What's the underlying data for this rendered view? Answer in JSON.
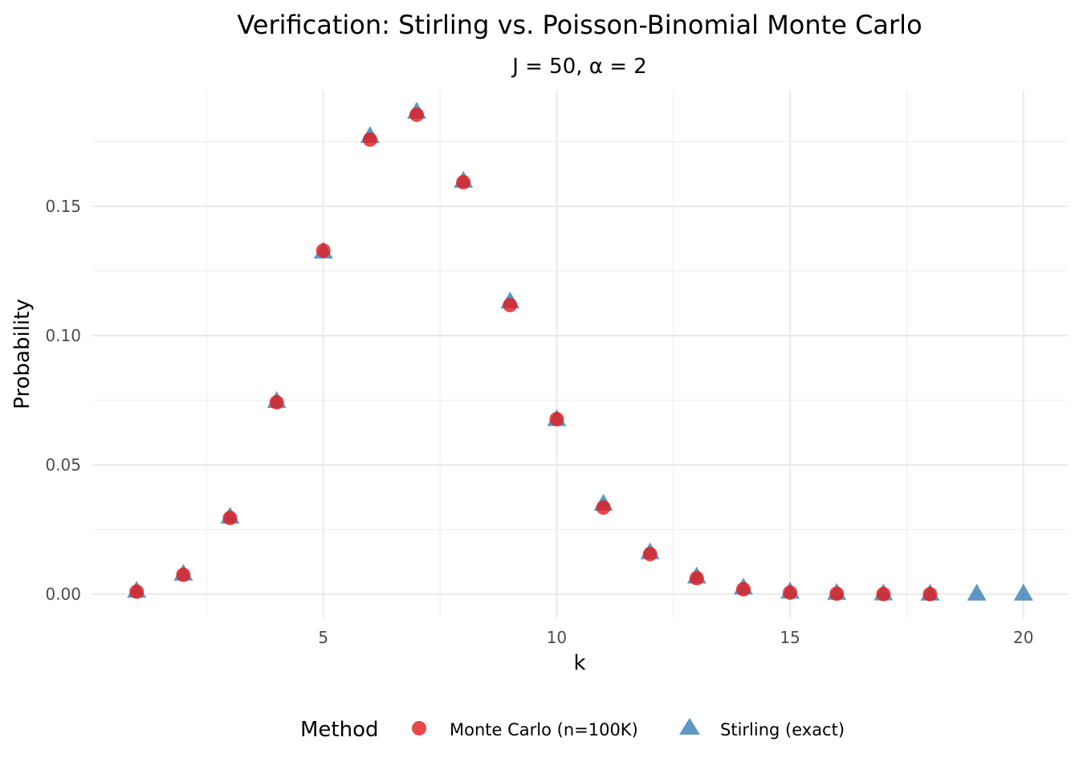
{
  "chart_data": {
    "type": "scatter",
    "title": "Verification: Stirling vs. Poisson-Binomial Monte Carlo",
    "subtitle": "J = 50, α = 2",
    "xlabel": "k",
    "ylabel": "Probability",
    "xlim": [
      0.05,
      20.95
    ],
    "ylim": [
      -0.0093,
      0.195
    ],
    "xticks": [
      5,
      10,
      15,
      20
    ],
    "xtick_labels": [
      "5",
      "10",
      "15",
      "20"
    ],
    "yticks": [
      0,
      0.05,
      0.1,
      0.15
    ],
    "ytick_labels": [
      "0.00",
      "0.05",
      "0.10",
      "0.15"
    ],
    "grid": true,
    "legend": {
      "title": "Method",
      "placement": "bottom"
    },
    "series": [
      {
        "name": "Monte Carlo (n=100K)",
        "marker": "circle",
        "color": "#E41A1C",
        "x": [
          1,
          2,
          3,
          4,
          5,
          6,
          7,
          8,
          9,
          10,
          11,
          12,
          13,
          14,
          15,
          16,
          17,
          18
        ],
        "y": [
          0.001,
          0.0075,
          0.0295,
          0.0742,
          0.1329,
          0.1758,
          0.1854,
          0.1593,
          0.1118,
          0.0677,
          0.0335,
          0.0155,
          0.0062,
          0.0019,
          0.0006,
          0.0002,
          5e-05,
          1e-05
        ]
      },
      {
        "name": "Stirling (exact)",
        "marker": "triangle",
        "color": "#377EB8",
        "x": [
          1,
          2,
          3,
          4,
          5,
          6,
          7,
          8,
          9,
          10,
          11,
          12,
          13,
          14,
          15,
          16,
          17,
          18,
          19,
          20
        ],
        "y": [
          0.0011,
          0.0077,
          0.0298,
          0.0745,
          0.1323,
          0.177,
          0.1864,
          0.1597,
          0.113,
          0.0675,
          0.0348,
          0.016,
          0.0066,
          0.0024,
          0.0008,
          0.0003,
          0.0001,
          2e-05,
          4e-06,
          5e-07
        ]
      }
    ]
  }
}
